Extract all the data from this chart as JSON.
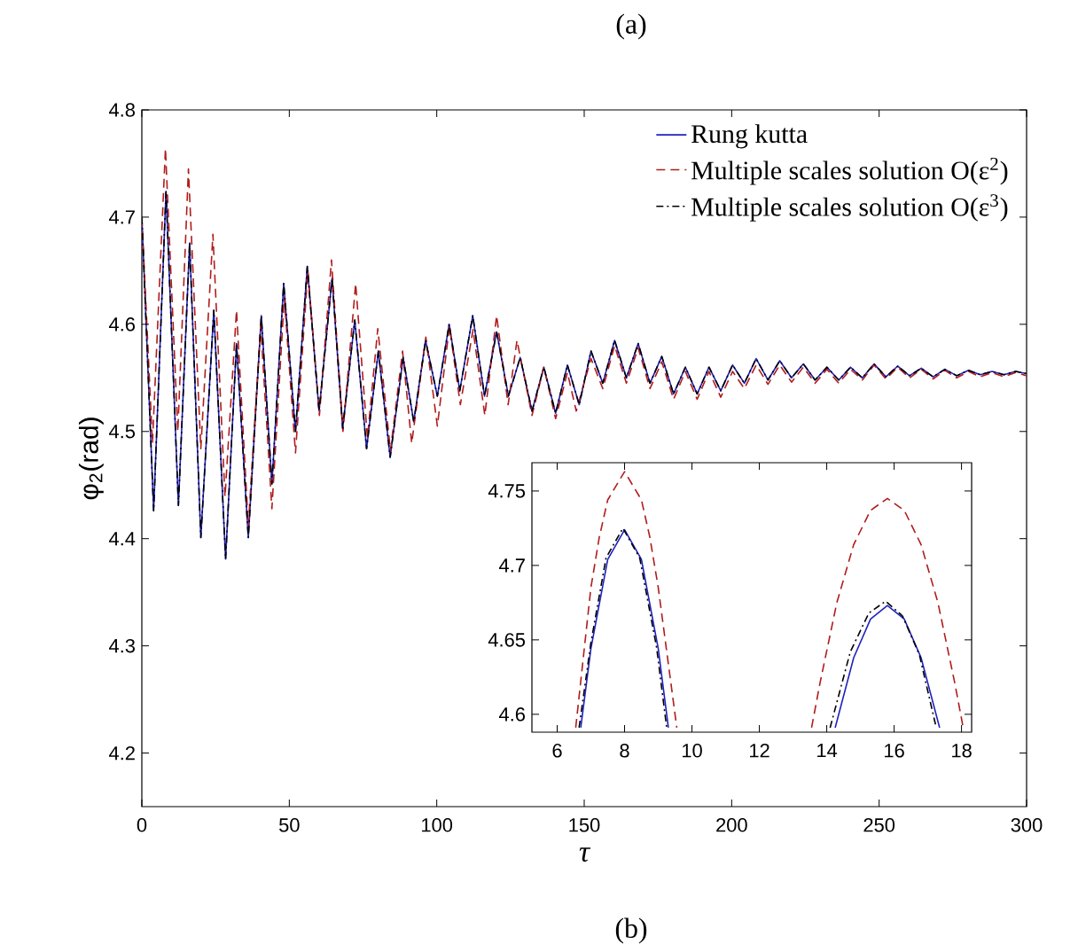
{
  "chart_data": [
    {
      "type": "line",
      "xlabel": "τ",
      "ylabel": "φ$_{2}$(rad)",
      "annotations": [
        "(a)",
        "(b)"
      ],
      "xlim": [
        0,
        300
      ],
      "ylim": [
        4.15,
        4.8
      ],
      "xticks": [
        0,
        50,
        100,
        150,
        200,
        250,
        300
      ],
      "yticks": [
        4.2,
        4.3,
        4.4,
        4.5,
        4.6,
        4.7,
        4.8
      ],
      "legend": "top right",
      "series": [
        {
          "name": "Rung kutta",
          "color": "#2020c0",
          "line_style": "solid",
          "x": [
            0,
            4.0,
            8.2,
            12.4,
            16.2,
            20.0,
            24.4,
            28.4,
            32.1,
            36.1,
            40.5,
            44.1,
            48.1,
            52.1,
            56.1,
            60.1,
            64.5,
            68.1,
            72.2,
            76.2,
            80.2,
            84.2,
            88.6,
            92.2,
            96.2,
            100.2,
            104.2,
            107.8,
            112.2,
            116.2,
            120.3,
            124.3,
            128.3,
            132.3,
            136.3,
            140.3,
            144.3,
            148.3,
            152.3,
            156.3,
            160.3,
            164.3,
            168.3,
            172.3,
            176.3,
            180.3,
            184.3,
            188.3,
            192.3,
            196.3,
            200.3,
            204.3,
            208.3,
            212.3,
            216.3,
            220.3,
            224.3,
            228.3,
            232.3,
            236.3,
            240.3,
            244.3,
            248.3,
            252.3,
            256.3,
            260.3,
            264.3,
            268.3,
            272.3,
            276.3,
            280.3,
            284.3,
            288.3,
            292.3,
            296.3,
            300
          ],
          "values": [
            4.7,
            4.426,
            4.724,
            4.431,
            4.676,
            4.401,
            4.613,
            4.381,
            4.582,
            4.401,
            4.608,
            4.451,
            4.638,
            4.5,
            4.654,
            4.519,
            4.643,
            4.503,
            4.604,
            4.484,
            4.575,
            4.476,
            4.569,
            4.509,
            4.585,
            4.533,
            4.6,
            4.538,
            4.608,
            4.533,
            4.593,
            4.533,
            4.569,
            4.519,
            4.56,
            4.517,
            4.562,
            4.525,
            4.575,
            4.545,
            4.585,
            4.55,
            4.582,
            4.545,
            4.57,
            4.535,
            4.56,
            4.535,
            4.56,
            4.538,
            4.562,
            4.545,
            4.568,
            4.548,
            4.566,
            4.55,
            4.563,
            4.548,
            4.56,
            4.548,
            4.56,
            4.55,
            4.563,
            4.551,
            4.561,
            4.552,
            4.559,
            4.551,
            4.558,
            4.552,
            4.557,
            4.553,
            4.556,
            4.553,
            4.556,
            4.554
          ]
        },
        {
          "name": "Multiple scales solution O(ε$^{2}$)",
          "color": "#b01c1c",
          "line_style": "dashed",
          "x": [
            0,
            3.6,
            8.0,
            12.2,
            15.8,
            20.0,
            24.1,
            28.2,
            32.1,
            36.1,
            40.3,
            44.1,
            48.3,
            52.1,
            56.3,
            60.2,
            64.3,
            68.2,
            72.5,
            76.5,
            80.0,
            84.3,
            88.4,
            91.5,
            96.3,
            100.2,
            104.3,
            108.0,
            112.3,
            116.3,
            120.3,
            124.2,
            127.2,
            132.3,
            136.3,
            140.3,
            144.3,
            147.3,
            152.3,
            156.3,
            160.3,
            164.3,
            168.3,
            172.3,
            176.3,
            180.3,
            184.3,
            188.3,
            192.3,
            196.3,
            200.3,
            204.3,
            208.3,
            212.3,
            216.3,
            220.3,
            224.3,
            228.3,
            232.3,
            236.3,
            240.3,
            244.3,
            248.3,
            252.3,
            256.3,
            260.3,
            264.3,
            268.3,
            272.3,
            276.3,
            280.3,
            284.3,
            288.3,
            292.3,
            296.3,
            300
          ],
          "values": [
            4.7,
            4.489,
            4.764,
            4.5,
            4.745,
            4.484,
            4.684,
            4.439,
            4.613,
            4.412,
            4.599,
            4.428,
            4.625,
            4.48,
            4.65,
            4.515,
            4.66,
            4.5,
            4.638,
            4.494,
            4.596,
            4.482,
            4.575,
            4.489,
            4.588,
            4.505,
            4.598,
            4.525,
            4.595,
            4.515,
            4.608,
            4.525,
            4.585,
            4.515,
            4.56,
            4.512,
            4.555,
            4.519,
            4.568,
            4.54,
            4.58,
            4.545,
            4.578,
            4.54,
            4.565,
            4.53,
            4.556,
            4.53,
            4.556,
            4.532,
            4.556,
            4.54,
            4.562,
            4.544,
            4.562,
            4.546,
            4.56,
            4.545,
            4.558,
            4.545,
            4.558,
            4.548,
            4.562,
            4.549,
            4.56,
            4.55,
            4.558,
            4.549,
            4.557,
            4.55,
            4.556,
            4.551,
            4.555,
            4.551,
            4.555,
            4.552
          ]
        },
        {
          "name": "Multiple scales solution O(ε$^{3}$)",
          "color": "#000000",
          "line_style": "dashdot",
          "x": [
            0,
            4.0,
            8.2,
            12.4,
            16.2,
            20.0,
            24.4,
            28.4,
            32.1,
            36.1,
            40.5,
            44.1,
            48.1,
            52.1,
            56.1,
            60.1,
            64.5,
            68.1,
            72.2,
            76.2,
            80.2,
            84.2,
            88.6,
            92.2,
            96.2,
            100.2,
            104.2,
            107.8,
            112.2,
            116.2,
            120.3,
            124.3,
            128.3,
            132.3,
            136.3,
            140.3,
            144.3,
            148.3,
            152.3,
            156.3,
            160.3,
            164.3,
            168.3,
            172.3,
            176.3,
            180.3,
            184.3,
            188.3,
            192.3,
            196.3,
            200.3,
            204.3,
            208.3,
            212.3,
            216.3,
            220.3,
            224.3,
            228.3,
            232.3,
            236.3,
            240.3,
            244.3,
            248.3,
            252.3,
            256.3,
            260.3,
            264.3,
            268.3,
            272.3,
            276.3,
            280.3,
            284.3,
            288.3,
            292.3,
            296.3,
            300
          ],
          "values": [
            4.7,
            4.426,
            4.724,
            4.431,
            4.676,
            4.401,
            4.613,
            4.381,
            4.582,
            4.401,
            4.608,
            4.451,
            4.638,
            4.5,
            4.654,
            4.519,
            4.643,
            4.503,
            4.604,
            4.484,
            4.575,
            4.476,
            4.569,
            4.509,
            4.585,
            4.533,
            4.6,
            4.538,
            4.608,
            4.533,
            4.593,
            4.533,
            4.569,
            4.519,
            4.56,
            4.517,
            4.562,
            4.525,
            4.575,
            4.545,
            4.585,
            4.55,
            4.582,
            4.545,
            4.57,
            4.535,
            4.56,
            4.535,
            4.56,
            4.538,
            4.562,
            4.545,
            4.568,
            4.548,
            4.566,
            4.55,
            4.563,
            4.548,
            4.56,
            4.548,
            4.56,
            4.55,
            4.563,
            4.551,
            4.561,
            4.552,
            4.559,
            4.551,
            4.558,
            4.552,
            4.557,
            4.553,
            4.556,
            4.553,
            4.556,
            4.554
          ]
        }
      ]
    },
    {
      "type": "line",
      "xlim": [
        5.25,
        18.3
      ],
      "ylim": [
        4.588,
        4.769
      ],
      "xticks": [
        6,
        8,
        10,
        12,
        14,
        16,
        18
      ],
      "yticks": [
        4.6,
        4.65,
        4.7,
        4.75
      ],
      "series": [
        {
          "color": "#b01c1c",
          "line_style": "dashed",
          "x": [
            6.55,
            7.0,
            7.25,
            7.5,
            8.0,
            8.5,
            8.75,
            9.0,
            9.55,
            11.5,
            13.55,
            13.8,
            14.3,
            14.8,
            15.3,
            15.8,
            16.3,
            16.8,
            17.3,
            17.8,
            18.05
          ],
          "values": [
            4.591,
            4.685,
            4.719,
            4.744,
            4.763,
            4.744,
            4.719,
            4.685,
            4.591,
            null,
            4.591,
            4.621,
            4.675,
            4.714,
            4.737,
            4.745,
            4.737,
            4.714,
            4.675,
            4.621,
            4.591
          ]
        },
        {
          "color": "#2020c0",
          "line_style": "solid",
          "x": [
            6.7,
            7.0,
            7.5,
            8.0,
            8.5,
            9.0,
            9.3,
            11.5,
            14.25,
            14.8,
            15.3,
            15.8,
            16.3,
            16.8,
            17.35
          ],
          "values": [
            4.591,
            4.644,
            4.704,
            4.724,
            4.704,
            4.644,
            4.591,
            null,
            4.591,
            4.638,
            4.664,
            4.673,
            4.664,
            4.638,
            4.591
          ]
        },
        {
          "color": "#000000",
          "line_style": "dashdot",
          "x": [
            6.65,
            7.0,
            7.45,
            7.95,
            8.45,
            8.95,
            9.25,
            11.5,
            14.1,
            14.7,
            15.25,
            15.75,
            16.25,
            16.75,
            17.25
          ],
          "values": [
            4.591,
            4.648,
            4.705,
            4.725,
            4.705,
            4.645,
            4.591,
            null,
            4.591,
            4.642,
            4.668,
            4.676,
            4.666,
            4.64,
            4.591
          ]
        }
      ]
    }
  ]
}
